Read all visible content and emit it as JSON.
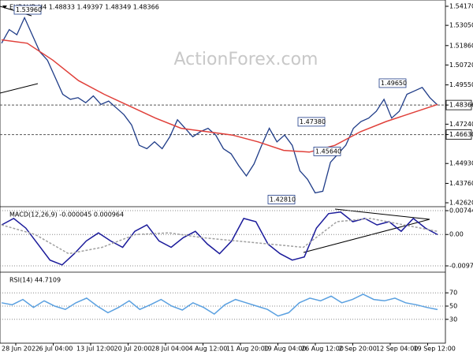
{
  "watermark": "ActionForex.com",
  "chart_data": [
    {
      "type": "line",
      "title": "EURAUD,H4  1.48833 1.49397 1.48349 1.48366",
      "series": [
        {
          "name": "EURAUD",
          "color": "#1f3c88",
          "values": [
            1.52,
            1.528,
            1.525,
            1.535,
            1.525,
            1.515,
            1.51,
            1.5,
            1.49,
            1.487,
            1.488,
            1.485,
            1.489,
            1.484,
            1.486,
            1.482,
            1.478,
            1.472,
            1.46,
            1.458,
            1.462,
            1.458,
            1.465,
            1.475,
            1.47,
            1.465,
            1.468,
            1.47,
            1.466,
            1.458,
            1.455,
            1.448,
            1.442,
            1.449,
            1.46,
            1.47,
            1.462,
            1.466,
            1.46,
            1.445,
            1.44,
            1.432,
            1.433,
            1.45,
            1.455,
            1.46,
            1.47,
            1.474,
            1.476,
            1.48,
            1.487,
            1.476,
            1.48,
            1.49,
            1.492,
            1.494,
            1.488,
            1.48366
          ]
        },
        {
          "name": "MA",
          "color": "#e0403a",
          "values": [
            1.522,
            1.52,
            1.51,
            1.498,
            1.49,
            1.483,
            1.476,
            1.47,
            1.468,
            1.466,
            1.462,
            1.457,
            1.456,
            1.46,
            1.468,
            1.474,
            1.479,
            1.484
          ]
        }
      ],
      "ylim": [
        1.4239,
        1.5454
      ],
      "yticks": [
        {
          "value": 1.5417,
          "label": "1.54170"
        },
        {
          "value": 1.5305,
          "label": "1.53050"
        },
        {
          "value": 1.5186,
          "label": "1.51860"
        },
        {
          "value": 1.5072,
          "label": "1.50720"
        },
        {
          "value": 1.4955,
          "label": "1.49550"
        },
        1.48366,
        {
          "value": 1.4724,
          "label": "1.47240"
        },
        {
          "value": 1.4663,
          "label": "1.46630"
        },
        {
          "value": 1.4493,
          "label": "1.44930"
        },
        {
          "value": 1.4376,
          "label": "1.43760"
        },
        {
          "value": 1.4262,
          "label": "1.42620"
        }
      ],
      "hlines": [
        1.48366,
        1.4663
      ],
      "annotations": [
        {
          "value": 1.5396,
          "label": "1.53960"
        },
        {
          "value": 1.4965,
          "label": "1.49650"
        },
        {
          "value": 1.4738,
          "label": "1.47380"
        },
        {
          "value": 1.4564,
          "label": "1.45640"
        },
        {
          "value": 1.4281,
          "label": "1.42810"
        }
      ],
      "grid": false
    },
    {
      "type": "line",
      "title": "MACD(12,26,9) -0.000045 0.000964",
      "series": [
        {
          "name": "MACD",
          "color": "#1a1a9a",
          "values": [
            0.003,
            0.005,
            0.002,
            -0.003,
            -0.008,
            -0.0095,
            -0.006,
            -0.002,
            0.0005,
            -0.002,
            -0.004,
            0.001,
            0.003,
            -0.002,
            -0.004,
            -0.001,
            0.001,
            -0.003,
            -0.006,
            -0.002,
            0.005,
            0.004,
            -0.003,
            -0.006,
            -0.008,
            -0.007,
            0.002,
            0.0065,
            0.007,
            0.004,
            0.005,
            0.003,
            0.004,
            0.001,
            0.005,
            0.002,
            -4.5e-05
          ]
        },
        {
          "name": "Signal",
          "color": "#a0a0a0",
          "values": [
            0.003,
            0.0,
            -0.006,
            -0.004,
            0.0,
            0.0005,
            -0.001,
            -0.002,
            -0.003,
            -0.004,
            0.004,
            0.005,
            0.003,
            0.000964
          ]
        }
      ],
      "ylim": [
        -0.01176,
        0.00843
      ],
      "yticks": [
        0.007441,
        {
          "value": 0,
          "label": "0.00"
        },
        -0.009794
      ],
      "grid": true
    },
    {
      "type": "line",
      "title": "RSI(14) 44.7109",
      "series": [
        {
          "name": "RSI",
          "color": "#5aa0e0",
          "values": [
            55,
            52,
            60,
            48,
            58,
            50,
            45,
            55,
            62,
            50,
            40,
            48,
            58,
            45,
            52,
            60,
            50,
            44,
            55,
            48,
            38,
            52,
            60,
            55,
            50,
            45,
            35,
            40,
            55,
            62,
            58,
            65,
            55,
            60,
            68,
            60,
            58,
            62,
            55,
            52,
            48,
            44.7109
          ]
        }
      ],
      "ylim": [
        0,
        100
      ],
      "yticks": [
        70,
        50,
        30
      ],
      "grid": true,
      "time_labels": [
        "28 Jun 2022",
        "6 Jul 04:00",
        "13 Jul 12:00",
        "20 Jul 20:00",
        "28 Jul 04:00",
        "4 Aug 12:00",
        "11 Aug 20:00",
        "19 Aug 04:00",
        "26 Aug 12:00",
        "2 Sep 20:00",
        "12 Sep 04:00",
        "19 Sep 12:00"
      ]
    }
  ]
}
